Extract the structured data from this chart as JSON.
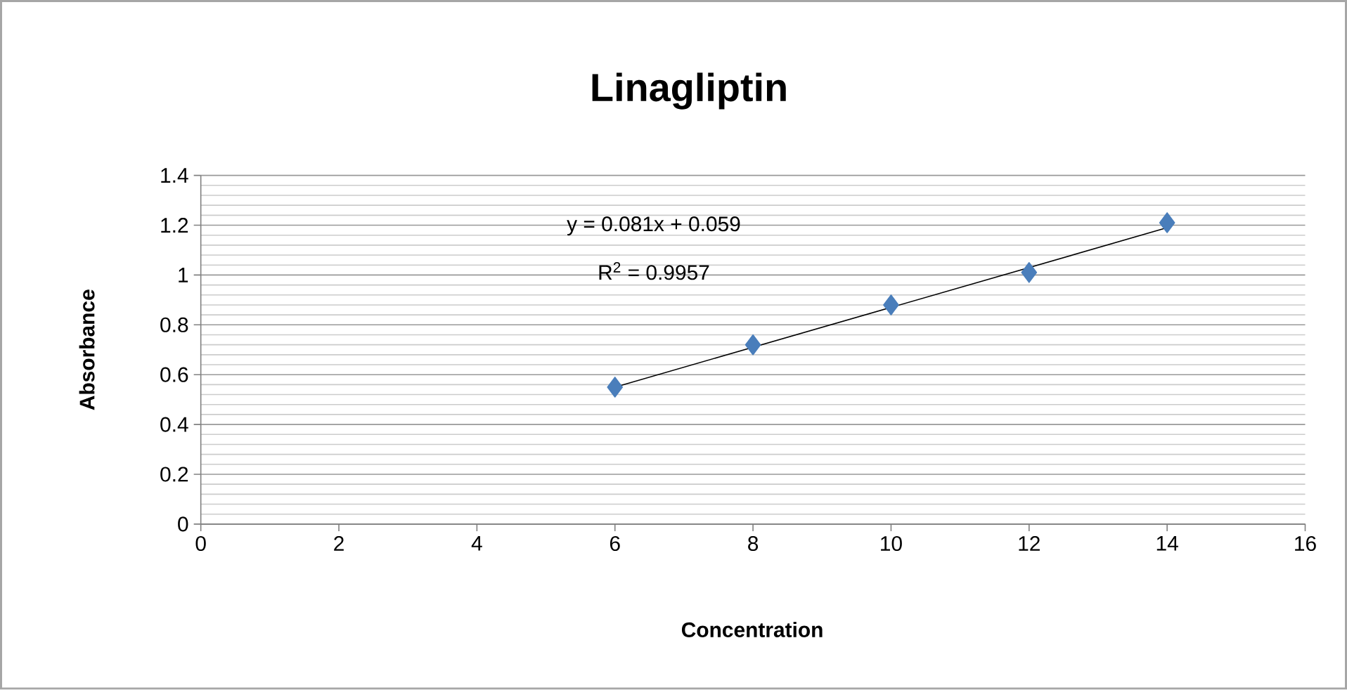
{
  "chart_data": {
    "type": "scatter",
    "title": "Linagliptin",
    "xlabel": "Concentration",
    "ylabel": "Absorbance",
    "xlim": [
      0,
      16
    ],
    "xticks": [
      0,
      2,
      4,
      6,
      8,
      10,
      12,
      14,
      16
    ],
    "ylim": [
      0,
      1.4
    ],
    "yticks": [
      0,
      0.2,
      0.4,
      0.6,
      0.8,
      1,
      1.2,
      1.4
    ],
    "grid": "y",
    "marker": "diamond",
    "series": [
      {
        "color": "#4a7ebb",
        "x": [
          6,
          8,
          10,
          12,
          14
        ],
        "values": [
          0.55,
          0.72,
          0.88,
          1.01,
          1.21
        ]
      },
      {
        "type": "line",
        "color": "#000000",
        "marker": "none",
        "x": [
          6,
          14
        ],
        "values": [
          0.55,
          1.19
        ]
      }
    ],
    "annotations": [
      "y = 0.081x + 0.059",
      "R$^{2}$ = 0.9957"
    ]
  }
}
